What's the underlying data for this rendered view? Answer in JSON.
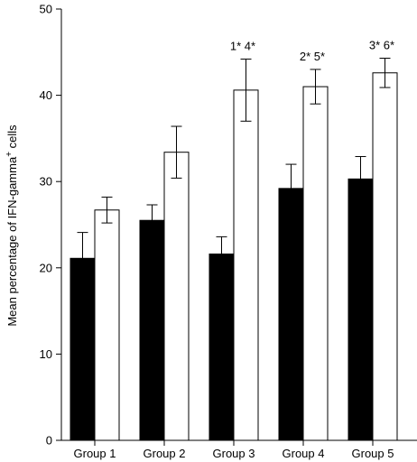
{
  "chart_data": {
    "type": "bar",
    "categories": [
      "Group 1",
      "Group 2",
      "Group 3",
      "Group 4",
      "Group 5"
    ],
    "series": [
      {
        "fill": "#000000",
        "values": [
          21.1,
          25.5,
          21.6,
          29.2,
          30.3
        ],
        "errors": [
          3.0,
          1.8,
          2.0,
          2.8,
          2.6
        ]
      },
      {
        "fill": "#ffffff",
        "values": [
          26.7,
          33.4,
          40.6,
          41.0,
          42.6
        ],
        "errors": [
          1.5,
          3.0,
          3.6,
          2.0,
          1.7
        ]
      }
    ],
    "ylabel_main": "Mean percentage of IFN-gamma",
    "ylabel_sup": "+",
    "ylabel_tail": " cells",
    "ylim": [
      0,
      50
    ],
    "yticks": [
      "0",
      "10",
      "20",
      "30",
      "40",
      "50"
    ],
    "annotations": [
      "",
      "",
      "1* 4*",
      "2* 5*",
      "3* 6*"
    ],
    "grid": false,
    "legend": "none"
  }
}
